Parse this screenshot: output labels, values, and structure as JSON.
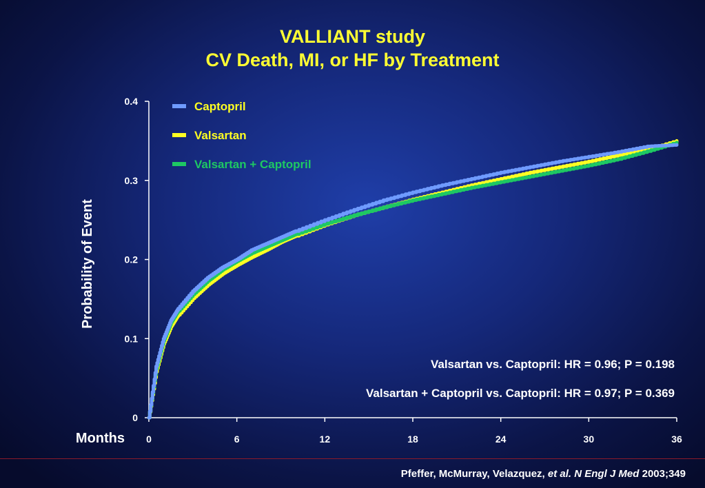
{
  "title_line1": "VALLIANT study",
  "title_line2": "CV Death, MI, or HF  by Treatment",
  "citation": {
    "authors": "Pfeffer, McMurray, Velazquez, ",
    "journal": "et al. N Engl J Med",
    "year_vol": " 2003;349"
  },
  "colors": {
    "captopril": "#6f9bff",
    "valsartan": "#ffff22",
    "combination": "#1ec863",
    "title": "#ffff33",
    "footer_rule": "#8b1a2a"
  },
  "chart_data": {
    "type": "line",
    "xlabel": "Months",
    "ylabel": "Probability of Event",
    "xlim": [
      0,
      36
    ],
    "ylim": [
      0,
      0.4
    ],
    "xticks": [
      "0",
      "6",
      "12",
      "18",
      "24",
      "30",
      "36"
    ],
    "xtick_values": [
      0,
      6,
      12,
      18,
      24,
      30,
      36
    ],
    "yticks": [
      "0",
      "0.1",
      "0.2",
      "0.3",
      "0.4"
    ],
    "ytick_values": [
      0,
      0.1,
      0.2,
      0.3,
      0.4
    ],
    "grid": false,
    "legend_position": "top-left",
    "series": [
      {
        "name": "Captopril",
        "x": [
          0,
          0.5,
          1,
          1.5,
          2,
          3,
          4,
          5,
          6,
          7,
          8,
          9,
          10,
          12,
          14,
          16,
          18,
          20,
          22,
          24,
          26,
          28,
          30,
          32,
          34,
          36
        ],
        "y": [
          0,
          0.065,
          0.1,
          0.123,
          0.138,
          0.16,
          0.177,
          0.19,
          0.2,
          0.212,
          0.22,
          0.228,
          0.236,
          0.25,
          0.263,
          0.275,
          0.285,
          0.294,
          0.302,
          0.31,
          0.317,
          0.324,
          0.33,
          0.336,
          0.343,
          0.345
        ]
      },
      {
        "name": "Valsartan",
        "x": [
          0,
          0.5,
          1,
          1.5,
          2,
          3,
          4,
          5,
          6,
          7,
          8,
          9,
          10,
          12,
          14,
          16,
          18,
          20,
          22,
          24,
          26,
          28,
          30,
          32,
          34,
          36
        ],
        "y": [
          0,
          0.058,
          0.093,
          0.115,
          0.13,
          0.151,
          0.168,
          0.182,
          0.193,
          0.203,
          0.212,
          0.222,
          0.23,
          0.244,
          0.256,
          0.266,
          0.276,
          0.285,
          0.294,
          0.302,
          0.31,
          0.317,
          0.324,
          0.332,
          0.339,
          0.35
        ]
      },
      {
        "name": "Valsartan + Captopril",
        "x": [
          0,
          0.5,
          1,
          1.5,
          2,
          3,
          4,
          5,
          6,
          7,
          8,
          9,
          10,
          12,
          14,
          16,
          18,
          20,
          22,
          24,
          26,
          28,
          30,
          32,
          34,
          36
        ],
        "y": [
          0,
          0.062,
          0.097,
          0.12,
          0.135,
          0.156,
          0.173,
          0.187,
          0.198,
          0.208,
          0.216,
          0.224,
          0.232,
          0.245,
          0.256,
          0.266,
          0.275,
          0.283,
          0.291,
          0.298,
          0.305,
          0.312,
          0.319,
          0.327,
          0.337,
          0.348
        ]
      }
    ],
    "annotations": [
      "Valsartan vs. Captopril: HR = 0.96; P = 0.198",
      "Valsartan + Captopril vs. Captopril: HR = 0.97; P = 0.369"
    ]
  }
}
